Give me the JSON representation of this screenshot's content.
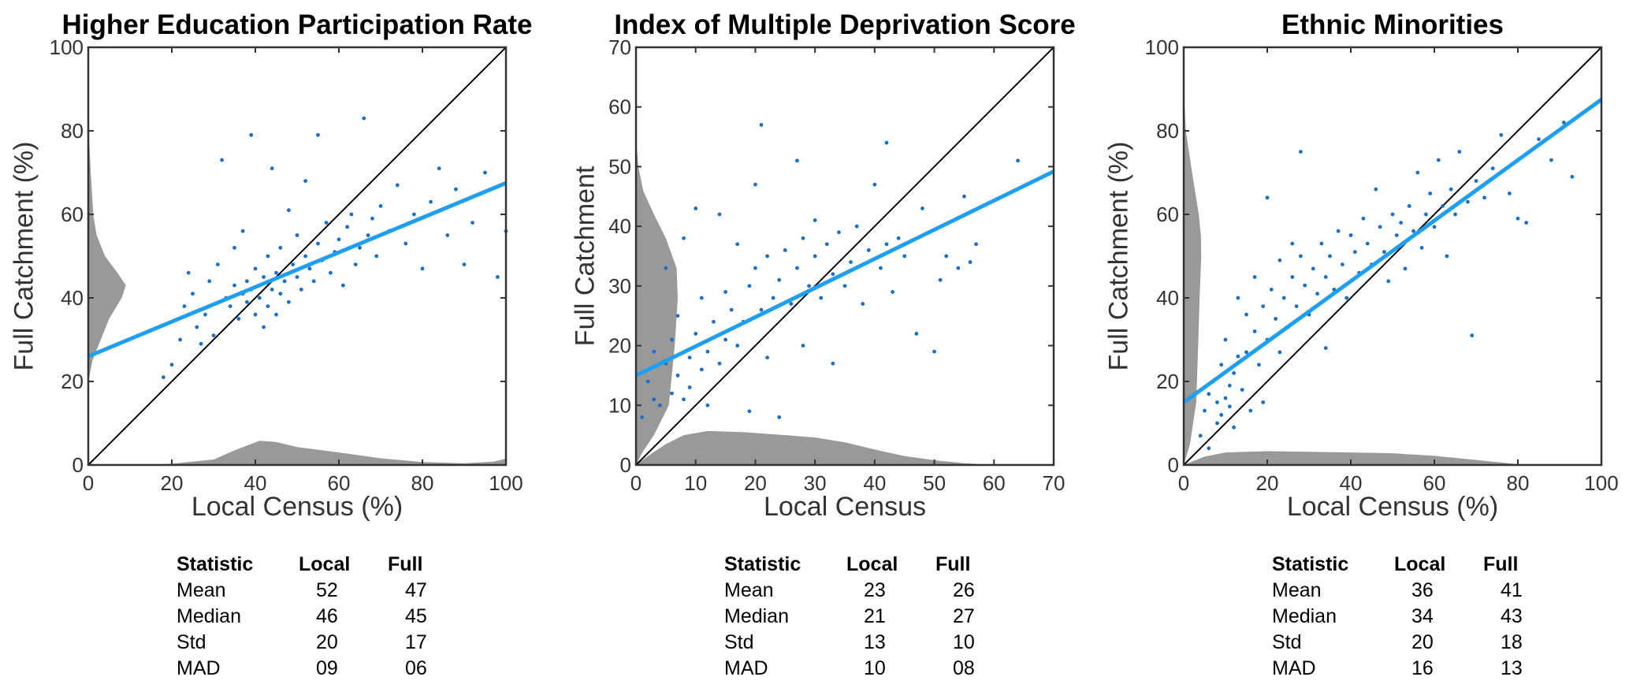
{
  "colors": {
    "points": "#1a6fc4",
    "fit": "#1e9ff2",
    "identity": "#000000",
    "density": "#999999",
    "axis": "#333333"
  },
  "chart_data": [
    {
      "type": "scatter",
      "title": "Higher Education Participation Rate",
      "xlabel": "Local Census (%)",
      "ylabel": "Full Catchment (%)",
      "xlim": [
        0,
        100
      ],
      "ylim": [
        0,
        100
      ],
      "xticks": [
        0,
        20,
        40,
        60,
        80,
        100
      ],
      "yticks": [
        0,
        20,
        40,
        60,
        80,
        100
      ],
      "grid": false,
      "identity_line": true,
      "fit_line": {
        "x": [
          0,
          100
        ],
        "y": [
          26,
          67.5
        ]
      },
      "points": [
        [
          18,
          21
        ],
        [
          20,
          24
        ],
        [
          22,
          30
        ],
        [
          23,
          38
        ],
        [
          24,
          46
        ],
        [
          25,
          41
        ],
        [
          26,
          33
        ],
        [
          27,
          29
        ],
        [
          28,
          36
        ],
        [
          29,
          44
        ],
        [
          30,
          31
        ],
        [
          31,
          48
        ],
        [
          32,
          73
        ],
        [
          33,
          40
        ],
        [
          34,
          38
        ],
        [
          35,
          43
        ],
        [
          35,
          52
        ],
        [
          36,
          35
        ],
        [
          37,
          41
        ],
        [
          37,
          56
        ],
        [
          38,
          44
        ],
        [
          38,
          39
        ],
        [
          39,
          42
        ],
        [
          39,
          79
        ],
        [
          40,
          36
        ],
        [
          40,
          47
        ],
        [
          41,
          43
        ],
        [
          41,
          40
        ],
        [
          42,
          45
        ],
        [
          42,
          33
        ],
        [
          43,
          50
        ],
        [
          43,
          38
        ],
        [
          44,
          42
        ],
        [
          44,
          71
        ],
        [
          45,
          46
        ],
        [
          45,
          36
        ],
        [
          46,
          52
        ],
        [
          46,
          41
        ],
        [
          47,
          44
        ],
        [
          48,
          61
        ],
        [
          48,
          39
        ],
        [
          49,
          48
        ],
        [
          50,
          45
        ],
        [
          50,
          55
        ],
        [
          51,
          42
        ],
        [
          52,
          50
        ],
        [
          52,
          68
        ],
        [
          53,
          47
        ],
        [
          54,
          44
        ],
        [
          55,
          53
        ],
        [
          55,
          79
        ],
        [
          56,
          49
        ],
        [
          57,
          58
        ],
        [
          58,
          46
        ],
        [
          59,
          51
        ],
        [
          60,
          54
        ],
        [
          61,
          43
        ],
        [
          62,
          57
        ],
        [
          63,
          60
        ],
        [
          64,
          48
        ],
        [
          65,
          52
        ],
        [
          66,
          83
        ],
        [
          67,
          55
        ],
        [
          68,
          59
        ],
        [
          69,
          50
        ],
        [
          70,
          62
        ],
        [
          72,
          56
        ],
        [
          74,
          67
        ],
        [
          76,
          53
        ],
        [
          78,
          60
        ],
        [
          80,
          47
        ],
        [
          82,
          63
        ],
        [
          84,
          71
        ],
        [
          86,
          55
        ],
        [
          88,
          66
        ],
        [
          90,
          48
        ],
        [
          92,
          58
        ],
        [
          95,
          70
        ],
        [
          98,
          45
        ],
        [
          100,
          56
        ]
      ],
      "density_y": [
        [
          20,
          0
        ],
        [
          25,
          1
        ],
        [
          30,
          3
        ],
        [
          35,
          5
        ],
        [
          40,
          8
        ],
        [
          43,
          9
        ],
        [
          46,
          7
        ],
        [
          50,
          4
        ],
        [
          55,
          2
        ],
        [
          60,
          1.2
        ],
        [
          70,
          0.6
        ],
        [
          80,
          0.1
        ],
        [
          85,
          0
        ]
      ],
      "density_x": [
        [
          0,
          0
        ],
        [
          15,
          0.1
        ],
        [
          20,
          0.3
        ],
        [
          30,
          1.3
        ],
        [
          35,
          3.5
        ],
        [
          41,
          5.8
        ],
        [
          45,
          5.5
        ],
        [
          50,
          4.3
        ],
        [
          60,
          3
        ],
        [
          70,
          1.6
        ],
        [
          80,
          0.7
        ],
        [
          90,
          0.4
        ],
        [
          97,
          0.8
        ],
        [
          100,
          1.5
        ]
      ],
      "table": {
        "headers": [
          "Statistic",
          "Local",
          "Full"
        ],
        "rows": [
          [
            "Mean",
            "52",
            "47"
          ],
          [
            "Median",
            "46",
            "45"
          ],
          [
            "Std",
            "20",
            "17"
          ],
          [
            "MAD",
            "09",
            "06"
          ]
        ]
      }
    },
    {
      "type": "scatter",
      "title": "Index of Multiple Deprivation Score",
      "xlabel": "Local Census",
      "ylabel": "Full Catchment",
      "xlim": [
        0,
        70
      ],
      "ylim": [
        0,
        70
      ],
      "xticks": [
        0,
        10,
        20,
        30,
        40,
        50,
        60,
        70
      ],
      "yticks": [
        0,
        10,
        20,
        30,
        40,
        50,
        60,
        70
      ],
      "grid": false,
      "identity_line": true,
      "fit_line": {
        "x": [
          0,
          70
        ],
        "y": [
          15,
          49.2
        ]
      },
      "points": [
        [
          1,
          8
        ],
        [
          2,
          14
        ],
        [
          3,
          11
        ],
        [
          3,
          19
        ],
        [
          4,
          10
        ],
        [
          5,
          17
        ],
        [
          5,
          33
        ],
        [
          6,
          12
        ],
        [
          6,
          21
        ],
        [
          7,
          15
        ],
        [
          7,
          25
        ],
        [
          8,
          11
        ],
        [
          8,
          38
        ],
        [
          9,
          18
        ],
        [
          9,
          13
        ],
        [
          10,
          22
        ],
        [
          10,
          43
        ],
        [
          11,
          16
        ],
        [
          11,
          28
        ],
        [
          12,
          19
        ],
        [
          12,
          10
        ],
        [
          13,
          24
        ],
        [
          14,
          17
        ],
        [
          14,
          42
        ],
        [
          15,
          29
        ],
        [
          15,
          21
        ],
        [
          16,
          26
        ],
        [
          17,
          20
        ],
        [
          17,
          37
        ],
        [
          18,
          24
        ],
        [
          19,
          30
        ],
        [
          19,
          9
        ],
        [
          20,
          33
        ],
        [
          20,
          47
        ],
        [
          21,
          26
        ],
        [
          21,
          57
        ],
        [
          22,
          35
        ],
        [
          22,
          18
        ],
        [
          23,
          28
        ],
        [
          24,
          31
        ],
        [
          24,
          8
        ],
        [
          25,
          36
        ],
        [
          26,
          27
        ],
        [
          27,
          33
        ],
        [
          27,
          51
        ],
        [
          28,
          38
        ],
        [
          28,
          20
        ],
        [
          29,
          30
        ],
        [
          30,
          35
        ],
        [
          30,
          41
        ],
        [
          31,
          28
        ],
        [
          32,
          37
        ],
        [
          33,
          32
        ],
        [
          33,
          17
        ],
        [
          34,
          39
        ],
        [
          35,
          30
        ],
        [
          36,
          34
        ],
        [
          37,
          40
        ],
        [
          38,
          27
        ],
        [
          39,
          36
        ],
        [
          40,
          47
        ],
        [
          41,
          33
        ],
        [
          42,
          37
        ],
        [
          42,
          54
        ],
        [
          43,
          29
        ],
        [
          44,
          38
        ],
        [
          45,
          35
        ],
        [
          47,
          22
        ],
        [
          48,
          43
        ],
        [
          50,
          19
        ],
        [
          51,
          31
        ],
        [
          52,
          35
        ],
        [
          54,
          33
        ],
        [
          55,
          45
        ],
        [
          56,
          34
        ],
        [
          57,
          37
        ],
        [
          64,
          51
        ]
      ],
      "density_y": [
        [
          0,
          0
        ],
        [
          2,
          1
        ],
        [
          5,
          3
        ],
        [
          10,
          5.5
        ],
        [
          20,
          6.5
        ],
        [
          28,
          7
        ],
        [
          33,
          6.8
        ],
        [
          38,
          5
        ],
        [
          42,
          3
        ],
        [
          46,
          1.2
        ],
        [
          50,
          0.4
        ],
        [
          55,
          0
        ]
      ],
      "density_x": [
        [
          0,
          0
        ],
        [
          2,
          1.5
        ],
        [
          5,
          3.5
        ],
        [
          8,
          5
        ],
        [
          12,
          5.7
        ],
        [
          18,
          5.5
        ],
        [
          25,
          5
        ],
        [
          30,
          4.6
        ],
        [
          35,
          3.8
        ],
        [
          40,
          2.6
        ],
        [
          45,
          1.5
        ],
        [
          50,
          0.8
        ],
        [
          55,
          0.3
        ],
        [
          60,
          0
        ]
      ],
      "table": {
        "headers": [
          "Statistic",
          "Local",
          "Full"
        ],
        "rows": [
          [
            "Mean",
            "23",
            "26"
          ],
          [
            "Median",
            "21",
            "27"
          ],
          [
            "Std",
            "13",
            "10"
          ],
          [
            "MAD",
            "10",
            "08"
          ]
        ]
      }
    },
    {
      "type": "scatter",
      "title": "Ethnic Minorities",
      "xlabel": "Local Census (%)",
      "ylabel": "Full Catchment (%)",
      "xlim": [
        0,
        100
      ],
      "ylim": [
        0,
        100
      ],
      "xticks": [
        0,
        20,
        40,
        60,
        80,
        100
      ],
      "yticks": [
        0,
        20,
        40,
        60,
        80,
        100
      ],
      "grid": false,
      "identity_line": true,
      "fit_line": {
        "x": [
          0,
          100
        ],
        "y": [
          15,
          87.5
        ]
      },
      "points": [
        [
          4,
          7
        ],
        [
          5,
          13
        ],
        [
          6,
          17
        ],
        [
          6,
          4
        ],
        [
          7,
          20
        ],
        [
          8,
          15
        ],
        [
          8,
          10
        ],
        [
          9,
          12
        ],
        [
          9,
          24
        ],
        [
          10,
          16
        ],
        [
          10,
          30
        ],
        [
          11,
          14
        ],
        [
          11,
          19
        ],
        [
          12,
          22
        ],
        [
          12,
          9
        ],
        [
          13,
          26
        ],
        [
          13,
          40
        ],
        [
          14,
          18
        ],
        [
          15,
          36
        ],
        [
          15,
          27
        ],
        [
          16,
          13
        ],
        [
          17,
          32
        ],
        [
          17,
          45
        ],
        [
          18,
          24
        ],
        [
          19,
          38
        ],
        [
          19,
          15
        ],
        [
          20,
          30
        ],
        [
          20,
          64
        ],
        [
          21,
          42
        ],
        [
          22,
          35
        ],
        [
          23,
          27
        ],
        [
          23,
          49
        ],
        [
          24,
          40
        ],
        [
          25,
          33
        ],
        [
          26,
          53
        ],
        [
          26,
          45
        ],
        [
          27,
          38
        ],
        [
          28,
          50
        ],
        [
          28,
          75
        ],
        [
          29,
          43
        ],
        [
          30,
          36
        ],
        [
          31,
          47
        ],
        [
          32,
          41
        ],
        [
          33,
          53
        ],
        [
          34,
          28
        ],
        [
          34,
          45
        ],
        [
          35,
          50
        ],
        [
          36,
          42
        ],
        [
          37,
          56
        ],
        [
          38,
          48
        ],
        [
          39,
          40
        ],
        [
          40,
          55
        ],
        [
          41,
          51
        ],
        [
          42,
          46
        ],
        [
          43,
          59
        ],
        [
          44,
          53
        ],
        [
          45,
          48
        ],
        [
          46,
          66
        ],
        [
          47,
          57
        ],
        [
          48,
          51
        ],
        [
          49,
          44
        ],
        [
          50,
          60
        ],
        [
          51,
          55
        ],
        [
          52,
          58
        ],
        [
          53,
          47
        ],
        [
          54,
          62
        ],
        [
          55,
          56
        ],
        [
          56,
          70
        ],
        [
          57,
          52
        ],
        [
          58,
          60
        ],
        [
          59,
          65
        ],
        [
          60,
          57
        ],
        [
          61,
          73
        ],
        [
          62,
          62
        ],
        [
          63,
          50
        ],
        [
          64,
          66
        ],
        [
          65,
          60
        ],
        [
          66,
          75
        ],
        [
          68,
          63
        ],
        [
          69,
          31
        ],
        [
          70,
          68
        ],
        [
          72,
          64
        ],
        [
          74,
          71
        ],
        [
          76,
          79
        ],
        [
          78,
          65
        ],
        [
          80,
          59
        ],
        [
          82,
          58
        ],
        [
          85,
          78
        ],
        [
          88,
          73
        ],
        [
          91,
          82
        ],
        [
          93,
          69
        ]
      ],
      "density_y": [
        [
          0,
          0
        ],
        [
          5,
          1.5
        ],
        [
          15,
          3
        ],
        [
          30,
          3.5
        ],
        [
          40,
          3.8
        ],
        [
          50,
          4.2
        ],
        [
          55,
          4.1
        ],
        [
          60,
          3.6
        ],
        [
          70,
          2
        ],
        [
          80,
          0.5
        ],
        [
          90,
          0
        ]
      ],
      "density_x": [
        [
          0,
          0
        ],
        [
          5,
          2
        ],
        [
          10,
          3
        ],
        [
          20,
          3.3
        ],
        [
          40,
          3
        ],
        [
          50,
          2.8
        ],
        [
          60,
          2.2
        ],
        [
          70,
          1.2
        ],
        [
          80,
          0.2
        ],
        [
          85,
          0
        ]
      ],
      "table": {
        "headers": [
          "Statistic",
          "Local",
          "Full"
        ],
        "rows": [
          [
            "Mean",
            "36",
            "41"
          ],
          [
            "Median",
            "34",
            "43"
          ],
          [
            "Std",
            "20",
            "18"
          ],
          [
            "MAD",
            "16",
            "13"
          ]
        ]
      }
    }
  ]
}
